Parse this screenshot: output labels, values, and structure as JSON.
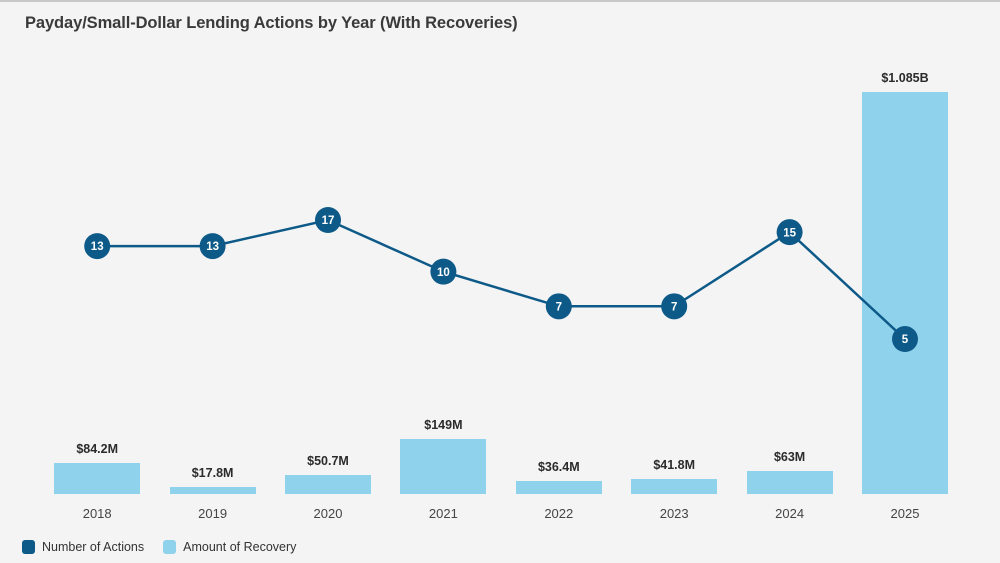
{
  "title": "Payday/Small-Dollar Lending Actions by Year (With Recoveries)",
  "colors": {
    "background": "#f4f4f4",
    "dark_blue": "#0d5a89",
    "light_blue": "#8fd2ec",
    "title_text": "#3a3a3a",
    "bar_label_text": "#2b2b2b",
    "axis_text": "#454545"
  },
  "legend": {
    "items": [
      {
        "label": "Number of Actions",
        "color": "#0d5a89"
      },
      {
        "label": "Amount of Recovery",
        "color": "#8fd2ec"
      }
    ]
  },
  "chart_data": {
    "type": "combo (line + bar)",
    "title": "Payday/Small-Dollar Lending Actions by Year (With Recoveries)",
    "categories": [
      "2018",
      "2019",
      "2020",
      "2021",
      "2022",
      "2023",
      "2024",
      "2025"
    ],
    "series": [
      {
        "name": "Number of Actions",
        "type": "line",
        "values": [
          13,
          13,
          17,
          10,
          7,
          7,
          15,
          5
        ]
      },
      {
        "name": "Amount of Recovery",
        "type": "bar",
        "values_usd_millions": [
          84.2,
          17.8,
          50.7,
          149,
          36.4,
          41.8,
          63,
          1085
        ],
        "value_labels": [
          "$84.2M",
          "$17.8M",
          "$50.7M",
          "$149M",
          "$36.4M",
          "$41.8M",
          "$63M",
          "$1.085B"
        ]
      }
    ],
    "xlabel": "",
    "ylabel": "",
    "grid": false,
    "y_axis_visible": false,
    "legend_position": "bottom-left"
  }
}
